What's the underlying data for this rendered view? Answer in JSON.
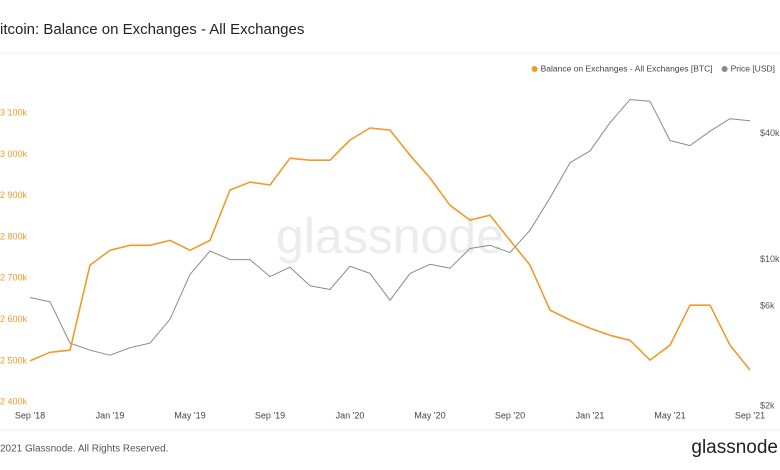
{
  "chart_data": {
    "type": "line",
    "title": "itcoin: Balance on Exchanges - All Exchanges",
    "watermark": "glassnode",
    "footer": "2021 Glassnode. All Rights Reserved.",
    "brand": "glassnode",
    "x": [
      "2018-09",
      "2018-10",
      "2018-11",
      "2018-12",
      "2019-01",
      "2019-02",
      "2019-03",
      "2019-04",
      "2019-05",
      "2019-06",
      "2019-07",
      "2019-08",
      "2019-09",
      "2019-10",
      "2019-11",
      "2019-12",
      "2020-01",
      "2020-02",
      "2020-03",
      "2020-04",
      "2020-05",
      "2020-06",
      "2020-07",
      "2020-08",
      "2020-09",
      "2020-10",
      "2020-11",
      "2020-12",
      "2021-01",
      "2021-02",
      "2021-03",
      "2021-04",
      "2021-05",
      "2021-06",
      "2021-07",
      "2021-08",
      "2021-09"
    ],
    "xlim": [
      "2018-09",
      "2021-09"
    ],
    "xticks": [
      {
        "value": "2018-09",
        "label": "Sep '18"
      },
      {
        "value": "2019-01",
        "label": "Jan '19"
      },
      {
        "value": "2019-05",
        "label": "May '19"
      },
      {
        "value": "2019-09",
        "label": "Sep '19"
      },
      {
        "value": "2020-01",
        "label": "Jan '20"
      },
      {
        "value": "2020-05",
        "label": "May '20"
      },
      {
        "value": "2020-09",
        "label": "Sep '20"
      },
      {
        "value": "2021-01",
        "label": "Jan '21"
      },
      {
        "value": "2021-05",
        "label": "May '21"
      },
      {
        "value": "2021-09",
        "label": "Sep '21"
      }
    ],
    "ylim": [
      2386,
      3144
    ],
    "yticks": [
      {
        "value": 2400,
        "label": "2 400k"
      },
      {
        "value": 2500,
        "label": "2 500k"
      },
      {
        "value": 2600,
        "label": "2 600k"
      },
      {
        "value": 2700,
        "label": "2 700k"
      },
      {
        "value": 2800,
        "label": "2 800k"
      },
      {
        "value": 2900,
        "label": "2 900k"
      },
      {
        "value": 3000,
        "label": "3 000k"
      },
      {
        "value": 3100,
        "label": "3 100k"
      }
    ],
    "y2lim": [
      1960,
      61000
    ],
    "y2scale": "log",
    "y2ticks": [
      {
        "value": 2000,
        "label": "$2k"
      },
      {
        "value": 6000,
        "label": "$6k"
      },
      {
        "value": 10000,
        "label": "$10k"
      },
      {
        "value": 40000,
        "label": "$40k"
      }
    ],
    "series": [
      {
        "name": "Balance on Exchanges - All Exchanges [BTC]",
        "color": "#f09a2a",
        "values": [
          2500,
          2521,
          2526,
          2732,
          2768,
          2780,
          2780,
          2792,
          2768,
          2792,
          2914,
          2933,
          2926,
          2991,
          2986,
          2986,
          3035,
          3064,
          3059,
          2998,
          2943,
          2877,
          2841,
          2853,
          2792,
          2732,
          2623,
          2599,
          2579,
          2562,
          2550,
          2502,
          2538,
          2635,
          2635,
          2538,
          2478
        ]
      },
      {
        "name": "Price [USD]",
        "color": "#8a8a8a",
        "axis": "y2",
        "values": [
          6600,
          6300,
          4000,
          3700,
          3500,
          3800,
          4000,
          5200,
          8500,
          11000,
          10000,
          10000,
          8300,
          9200,
          7500,
          7200,
          9300,
          8600,
          6400,
          8600,
          9500,
          9100,
          11300,
          11700,
          10800,
          13800,
          19700,
          29000,
          33000,
          45000,
          58000,
          57000,
          37000,
          35000,
          41000,
          47000,
          46000
        ]
      }
    ]
  }
}
